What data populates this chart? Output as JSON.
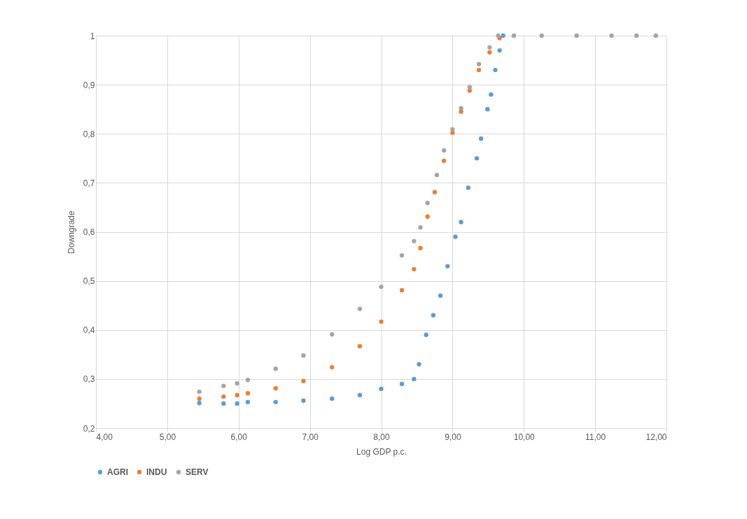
{
  "chart_data": {
    "type": "scatter",
    "xlabel": "Log GDP p.c.",
    "ylabel": "Downgrade",
    "xlim": [
      4,
      12
    ],
    "ylim": [
      0.2,
      1
    ],
    "xticks": [
      {
        "value": 4,
        "label": "4,00"
      },
      {
        "value": 5,
        "label": "5,00"
      },
      {
        "value": 6,
        "label": "6,00"
      },
      {
        "value": 7,
        "label": "7,00"
      },
      {
        "value": 8,
        "label": "8,00"
      },
      {
        "value": 9,
        "label": "9,00"
      },
      {
        "value": 10,
        "label": "10,00"
      },
      {
        "value": 11,
        "label": "11,00"
      },
      {
        "value": 12,
        "label": "12,00"
      }
    ],
    "yticks": [
      {
        "value": 0.2,
        "label": "0,2"
      },
      {
        "value": 0.3,
        "label": "0,3"
      },
      {
        "value": 0.4,
        "label": "0,4"
      },
      {
        "value": 0.5,
        "label": "0,5"
      },
      {
        "value": 0.6,
        "label": "0,6"
      },
      {
        "value": 0.7,
        "label": "0,7"
      },
      {
        "value": 0.8,
        "label": "0,8"
      },
      {
        "value": 0.9,
        "label": "0,9"
      },
      1
    ],
    "grid": true,
    "legend": "bottom",
    "marker": "circle",
    "series": [
      {
        "name": "AGRI",
        "color": "#5b9bd5",
        "x": [
          5.45,
          5.79,
          5.98,
          6.13,
          6.52,
          6.91,
          7.31,
          7.7,
          8.0,
          8.29,
          8.46,
          8.53,
          8.63,
          8.73,
          8.83,
          8.93,
          9.04,
          9.12,
          9.22,
          9.34,
          9.4,
          9.49,
          9.54,
          9.6,
          9.66,
          9.71
        ],
        "values": [
          0.251,
          0.25,
          0.25,
          0.253,
          0.253,
          0.256,
          0.26,
          0.267,
          0.28,
          0.29,
          0.3,
          0.33,
          0.39,
          0.43,
          0.47,
          0.53,
          0.59,
          0.62,
          0.69,
          0.75,
          0.79,
          0.85,
          0.88,
          0.93,
          0.97,
          1.0
        ]
      },
      {
        "name": "INDU",
        "color": "#ed7d31",
        "x": [
          5.45,
          5.79,
          5.98,
          6.13,
          6.52,
          6.91,
          7.31,
          7.7,
          8.0,
          8.29,
          8.46,
          8.55,
          8.65,
          8.75,
          8.88,
          9.0,
          9.12,
          9.24,
          9.37,
          9.52,
          9.66
        ],
        "values": [
          0.26,
          0.264,
          0.267,
          0.271,
          0.281,
          0.296,
          0.324,
          0.367,
          0.417,
          0.481,
          0.524,
          0.567,
          0.631,
          0.681,
          0.745,
          0.802,
          0.845,
          0.888,
          0.93,
          0.966,
          0.995
        ]
      },
      {
        "name": "SERV",
        "color": "#a5a5a5",
        "x": [
          5.45,
          5.79,
          5.98,
          6.13,
          6.52,
          6.91,
          7.31,
          7.7,
          8.0,
          8.29,
          8.46,
          8.55,
          8.65,
          8.78,
          8.88,
          9.0,
          9.12,
          9.24,
          9.37,
          9.52,
          9.64,
          9.86,
          10.25,
          10.74,
          11.23,
          11.58,
          11.85
        ],
        "values": [
          0.274,
          0.286,
          0.291,
          0.298,
          0.321,
          0.348,
          0.391,
          0.443,
          0.488,
          0.552,
          0.581,
          0.609,
          0.659,
          0.716,
          0.766,
          0.809,
          0.852,
          0.895,
          0.942,
          0.976,
          1.0,
          1,
          1,
          1,
          1,
          1,
          1
        ]
      }
    ]
  }
}
